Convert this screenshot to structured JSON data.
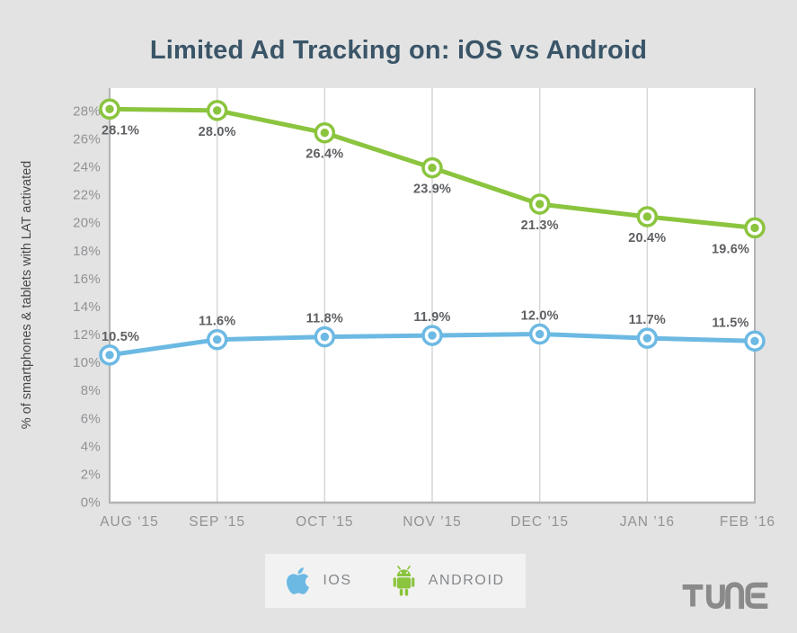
{
  "title": {
    "text": "Limited Ad Tracking on: iOS vs Android"
  },
  "chart_data": {
    "type": "line",
    "title": "Limited Ad Tracking on: iOS vs Android",
    "categories": [
      "AUG ‘15",
      "SEP ’15",
      "OCT ’15",
      "NOV ’15",
      "DEC ’15",
      "JAN ’16",
      "FEB ’16"
    ],
    "series": [
      {
        "name": "ANDROID",
        "color": "#8bc43e",
        "values": [
          28.1,
          28.0,
          26.4,
          23.9,
          21.3,
          20.4,
          19.6
        ],
        "label_side": "below"
      },
      {
        "name": "IOS",
        "color": "#6cb9e3",
        "values": [
          10.5,
          11.6,
          11.8,
          11.9,
          12.0,
          11.7,
          11.5
        ],
        "label_side": "above"
      }
    ],
    "xlabel": "",
    "ylabel": "% of smartphones & tablets with LAT activated",
    "ylim": [
      0,
      29.6
    ],
    "ytick_step": 2,
    "yticks": [
      "0%",
      "2%",
      "4%",
      "6%",
      "8%",
      "10%",
      "12%",
      "14%",
      "16%",
      "18%",
      "20%",
      "22%",
      "24%",
      "26%",
      "28%"
    ],
    "grid": "vertical-only",
    "legend_position": "bottom",
    "data_label_format": "one-decimal-percent"
  },
  "legend": {
    "items": [
      {
        "icon": "apple-icon",
        "label": "IOS",
        "color": "#6cb9e3"
      },
      {
        "icon": "android-icon",
        "label": "ANDROID",
        "color": "#8bc43e"
      }
    ]
  },
  "brand": {
    "name": "TUNE",
    "color": "#8a8a8a"
  },
  "colors": {
    "background": "#e3e3e3",
    "plot_background": "#ffffff",
    "title": "#3a5568",
    "axis_text": "#909295",
    "ylabel_text": "#47484a",
    "data_label": "#5e6063",
    "gridline": "#d6d6d6",
    "axis_edge": "#b3b3b3",
    "legend_background": "#f2f2f2"
  }
}
